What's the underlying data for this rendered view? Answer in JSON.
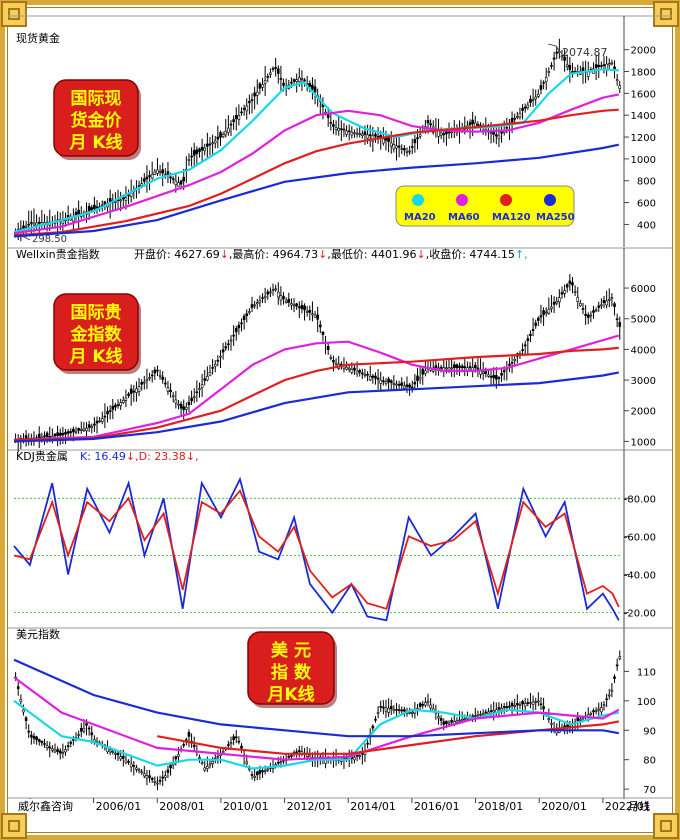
{
  "panel_titles": [
    "现货黄金",
    "Wellxin贵金指数",
    "KDJ贵金属",
    "美元指数"
  ],
  "badges": [
    "国际现\n货金价\n月 K线",
    "国际贵\n金指数\n月 K线",
    "美 元\n指 数\n月K线"
  ],
  "ohlc_labels": [
    {
      "text": "开盘价: 4627.69",
      "arrow": "↓",
      "color": "#000000"
    },
    {
      "text": ",最高价: 4964.73",
      "arrow": "↓",
      "color": "#000000"
    },
    {
      "text": ",最低价: 4401.96",
      "arrow": "↓",
      "color": "#000000"
    },
    {
      "text": ",收盘价: 4744.15",
      "arrow": "↑,",
      "color": "#000000"
    }
  ],
  "kdj_labels": [
    {
      "text": "K: 16.49",
      "arrow": "↓,",
      "color": "#1a2bd6"
    },
    {
      "text": " D: 23.38",
      "arrow": "↓,",
      "color": "#e0201a"
    }
  ],
  "annotations": {
    "gold_high": "2074.87",
    "gold_low": "298.50"
  },
  "legend": [
    {
      "label": "MA20",
      "color": "#18d8e8"
    },
    {
      "label": "MA60",
      "color": "#e020e0"
    },
    {
      "label": "MA120",
      "color": "#e02020"
    },
    {
      "label": "MA250",
      "color": "#1a2bd6"
    }
  ],
  "colors": {
    "ma20": "#18d8e8",
    "ma60": "#e020e0",
    "ma120": "#e02020",
    "ma250": "#1a2bd6",
    "k": "#1a2bd6",
    "d": "#e0201a",
    "candle": "#000000",
    "badge": "#d91e1e",
    "badge_text": "#ffff00"
  },
  "x_ticks": [
    "4/01",
    "2006/01",
    "2008/01",
    "2010/01",
    "2012/01",
    "2014/01",
    "2016/01",
    "2018/01",
    "2020/01",
    "2022/01"
  ],
  "footer_left": "威尔鑫咨询",
  "footer_right": "月线",
  "chart_data": [
    {
      "type": "candlestick",
      "title": "现货黄金",
      "ylim": [
        230,
        2180
      ],
      "yticks": [
        400,
        600,
        800,
        1000,
        1200,
        1400,
        1600,
        1800,
        2000
      ],
      "x": [
        2003.5,
        2004,
        2005,
        2006,
        2007,
        2008,
        2008.8,
        2009,
        2010,
        2011,
        2011.7,
        2012,
        2012.5,
        2013,
        2013.5,
        2014,
        2015,
        2015.9,
        2016.5,
        2017,
        2018,
        2018.7,
        2019,
        2019.5,
        2020,
        2020.6,
        2021,
        2021.5,
        2022,
        2022.3,
        2022.5
      ],
      "y": [
        300,
        410,
        430,
        540,
        640,
        900,
        760,
        1000,
        1200,
        1550,
        1850,
        1650,
        1750,
        1600,
        1300,
        1250,
        1200,
        1060,
        1330,
        1220,
        1330,
        1200,
        1290,
        1450,
        1600,
        2000,
        1800,
        1800,
        1860,
        1880,
        1670
      ],
      "ma": {
        "MA20": {
          "x": [
            2003.5,
            2005,
            2006,
            2008,
            2009,
            2010,
            2011,
            2012,
            2012.6,
            2013.5,
            2014.5,
            2015.5,
            2016.5,
            2017.5,
            2018.5,
            2019.5,
            2020.3,
            2021,
            2022,
            2022.5
          ],
          "y": [
            330,
            440,
            520,
            820,
            900,
            1080,
            1350,
            1650,
            1700,
            1420,
            1280,
            1200,
            1260,
            1280,
            1290,
            1330,
            1600,
            1780,
            1820,
            1810
          ]
        },
        "MA60": {
          "x": [
            2003.5,
            2005,
            2007,
            2009,
            2010,
            2011,
            2012,
            2013,
            2014,
            2015,
            2016,
            2017,
            2018,
            2019,
            2020,
            2021,
            2022,
            2022.5
          ],
          "y": [
            320,
            380,
            560,
            760,
            880,
            1050,
            1260,
            1400,
            1440,
            1400,
            1300,
            1260,
            1250,
            1260,
            1330,
            1450,
            1560,
            1590
          ]
        },
        "MA120": {
          "x": [
            2003.5,
            2005,
            2007,
            2009,
            2010,
            2011,
            2012,
            2013,
            2014,
            2015,
            2016,
            2018,
            2020,
            2021,
            2022,
            2022.5
          ],
          "y": [
            300,
            330,
            430,
            570,
            680,
            820,
            960,
            1070,
            1140,
            1190,
            1240,
            1290,
            1350,
            1400,
            1440,
            1450
          ]
        },
        "MA250": {
          "x": [
            2003.5,
            2006,
            2008,
            2010,
            2012,
            2014,
            2016,
            2018,
            2020,
            2022,
            2022.5
          ],
          "y": [
            290,
            340,
            440,
            620,
            790,
            870,
            920,
            960,
            1010,
            1100,
            1130
          ]
        }
      }
    },
    {
      "type": "candlestick",
      "title": "Wellxin贵金指数",
      "ylim": [
        850,
        6850
      ],
      "yticks": [
        1000,
        2000,
        3000,
        4000,
        5000,
        6000
      ],
      "x": [
        2003.5,
        2005,
        2006,
        2007,
        2008,
        2008.8,
        2009,
        2010,
        2011,
        2011.7,
        2012,
        2013,
        2013.5,
        2014,
        2015,
        2016,
        2016.5,
        2017,
        2018,
        2018.7,
        2019,
        2019.5,
        2020,
        2020.5,
        2021,
        2021.5,
        2022,
        2022.3,
        2022.5
      ],
      "y": [
        1050,
        1200,
        1500,
        2400,
        3300,
        2000,
        2200,
        3800,
        5400,
        6000,
        5600,
        5100,
        3600,
        3400,
        3000,
        2750,
        3400,
        3400,
        3400,
        3000,
        3400,
        4000,
        5000,
        5500,
        6200,
        5000,
        5500,
        5700,
        4750
      ],
      "ma": {
        "MA60": {
          "x": [
            2003.5,
            2006,
            2008,
            2009,
            2010,
            2011,
            2012,
            2013,
            2014,
            2015,
            2016,
            2017,
            2018,
            2019,
            2020,
            2021,
            2022,
            2022.5
          ],
          "y": [
            1050,
            1150,
            1600,
            1900,
            2700,
            3500,
            4000,
            4200,
            4250,
            3900,
            3500,
            3300,
            3300,
            3400,
            3700,
            4000,
            4300,
            4450
          ]
        },
        "MA120": {
          "x": [
            2003.5,
            2006,
            2008,
            2010,
            2011,
            2012,
            2013,
            2014,
            2015,
            2016,
            2018,
            2020,
            2021,
            2022,
            2022.5
          ],
          "y": [
            1050,
            1100,
            1450,
            2000,
            2500,
            3000,
            3300,
            3500,
            3550,
            3600,
            3750,
            3850,
            3950,
            4000,
            4050
          ]
        },
        "MA250": {
          "x": [
            2003.5,
            2006,
            2008,
            2010,
            2011,
            2012,
            2014,
            2016,
            2018,
            2020,
            2022,
            2022.5
          ],
          "y": [
            1000,
            1080,
            1300,
            1650,
            1950,
            2250,
            2600,
            2700,
            2800,
            2900,
            3150,
            3250
          ]
        }
      }
    },
    {
      "type": "line",
      "title": "KDJ贵金属",
      "ylim": [
        13,
        98
      ],
      "yticks": [
        20,
        40,
        60,
        80
      ],
      "grid_levels": [
        20,
        50,
        80
      ],
      "series": [
        {
          "name": "K",
          "x": [
            2003.5,
            2004,
            2004.7,
            2005.2,
            2005.8,
            2006.5,
            2007.1,
            2007.6,
            2008.2,
            2008.8,
            2009.4,
            2010,
            2010.6,
            2011.2,
            2011.8,
            2012.3,
            2012.8,
            2013.5,
            2014.1,
            2014.6,
            2015.2,
            2015.9,
            2016.6,
            2017.3,
            2018,
            2018.7,
            2019.5,
            2020.2,
            2020.8,
            2021.5,
            2022,
            2022.3,
            2022.5
          ],
          "y": [
            55,
            45,
            88,
            40,
            85,
            62,
            88,
            50,
            80,
            22,
            88,
            70,
            90,
            52,
            48,
            70,
            35,
            20,
            35,
            18,
            16,
            70,
            50,
            60,
            72,
            22,
            85,
            60,
            78,
            22,
            30,
            22,
            16
          ]
        },
        {
          "name": "D",
          "x": [
            2003.5,
            2004,
            2004.7,
            2005.2,
            2005.8,
            2006.5,
            2007.1,
            2007.6,
            2008.2,
            2008.8,
            2009.4,
            2010,
            2010.6,
            2011.2,
            2011.8,
            2012.3,
            2012.8,
            2013.5,
            2014.1,
            2014.6,
            2015.2,
            2015.9,
            2016.6,
            2017.3,
            2018,
            2018.7,
            2019.5,
            2020.2,
            2020.8,
            2021.5,
            2022,
            2022.3,
            2022.5
          ],
          "y": [
            50,
            48,
            78,
            50,
            78,
            68,
            80,
            58,
            72,
            32,
            78,
            72,
            84,
            60,
            52,
            65,
            42,
            28,
            35,
            25,
            22,
            60,
            55,
            58,
            68,
            30,
            78,
            65,
            72,
            30,
            34,
            30,
            23
          ]
        }
      ]
    },
    {
      "type": "candlestick",
      "title": "美元指数",
      "ylim": [
        68,
        120
      ],
      "yticks": [
        70,
        80,
        90,
        100,
        110
      ],
      "x": [
        2003.5,
        2004,
        2005,
        2005.8,
        2006,
        2007,
        2008,
        2008.3,
        2009,
        2009.5,
        2010,
        2010.5,
        2011,
        2012,
        2012.5,
        2013,
        2014,
        2014.5,
        2015,
        2016,
        2016.5,
        2017,
        2018,
        2019,
        2020,
        2020.5,
        2021,
        2022,
        2022.3,
        2022.5
      ],
      "y": [
        110,
        88,
        82,
        92,
        87,
        80,
        72,
        75,
        88,
        77,
        82,
        88,
        74,
        80,
        83,
        80,
        80,
        82,
        98,
        96,
        100,
        92,
        95,
        98,
        100,
        90,
        92,
        98,
        104,
        115
      ],
      "ma": {
        "MA20": {
          "x": [
            2003.5,
            2005,
            2006,
            2008,
            2009,
            2010,
            2011,
            2012,
            2013,
            2014,
            2015,
            2016,
            2017,
            2018,
            2019,
            2020,
            2021,
            2022,
            2022.5
          ],
          "y": [
            100,
            88,
            86,
            78,
            80,
            80,
            77,
            78,
            80,
            80,
            92,
            97,
            96,
            94,
            97,
            96,
            92,
            95,
            96
          ]
        },
        "MA60": {
          "x": [
            2003.5,
            2005,
            2006,
            2008,
            2010,
            2012,
            2014,
            2016,
            2018,
            2020,
            2022,
            2022.5
          ],
          "y": [
            108,
            96,
            92,
            84,
            82,
            80,
            81,
            88,
            94,
            96,
            94,
            97
          ]
        },
        "MA120": {
          "x": [
            2008,
            2010,
            2012,
            2014,
            2016,
            2018,
            2020,
            2022,
            2022.5
          ],
          "y": [
            88,
            84,
            82,
            82,
            85,
            88,
            90,
            92,
            93
          ]
        },
        "MA250": {
          "x": [
            2003.5,
            2006,
            2008,
            2010,
            2012,
            2014,
            2016,
            2018,
            2020,
            2022,
            2022.5
          ],
          "y": [
            114,
            102,
            96,
            92,
            90,
            88,
            88,
            89,
            90,
            90,
            89
          ]
        }
      }
    }
  ]
}
